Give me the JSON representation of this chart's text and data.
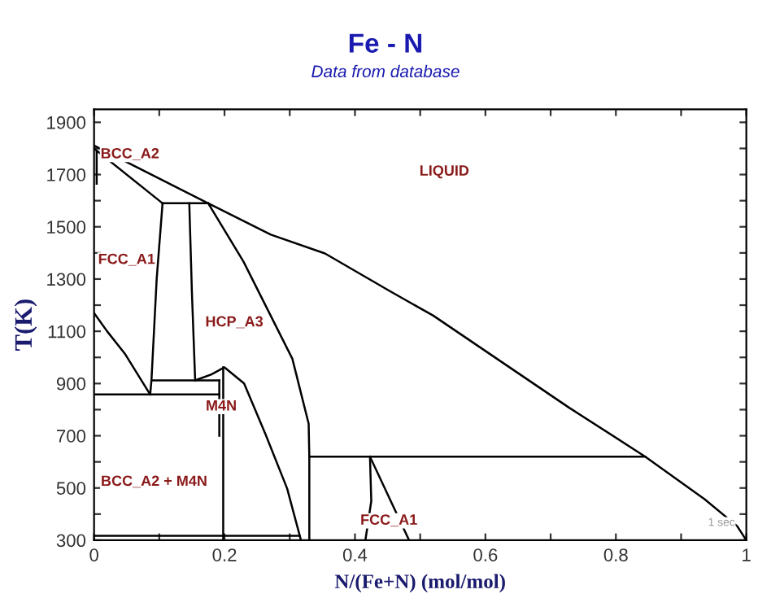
{
  "chart_data": {
    "type": "line",
    "title": "Fe - N",
    "subtitle": "Data from database",
    "xlabel": "N/(Fe+N) (mol/mol)",
    "ylabel": "T(K)",
    "xlim": [
      0,
      1
    ],
    "ylim": [
      300,
      1950
    ],
    "xticks": [
      0,
      {
        "value": 0.1,
        "label": null
      },
      0.2,
      {
        "value": 0.3,
        "label": null
      },
      0.4,
      {
        "value": 0.5,
        "label": null
      },
      0.6,
      {
        "value": 0.7,
        "label": null
      },
      0.8,
      {
        "value": 0.9,
        "label": null
      },
      1
    ],
    "yticks": [
      300,
      {
        "value": 400,
        "label": null
      },
      500,
      {
        "value": 600,
        "label": null
      },
      700,
      {
        "value": 800,
        "label": null
      },
      900,
      {
        "value": 1000,
        "label": null
      },
      1100,
      {
        "value": 1200,
        "label": null
      },
      1300,
      {
        "value": 1400,
        "label": null
      },
      1500,
      {
        "value": 1600,
        "label": null
      },
      1700,
      {
        "value": 1800,
        "label": null
      },
      1900
    ],
    "grid": false,
    "legend": false,
    "marker": "none",
    "line_style": "solid",
    "series": [
      {
        "color": "#000000",
        "x": [
          0,
          0.175,
          0.271,
          0.354,
          0.454,
          0.52,
          0.728,
          0.845,
          0.936,
          0.986,
          1.0
        ],
        "values": [
          1811,
          1590,
          1470,
          1398,
          1253,
          1160,
          808,
          620,
          457,
          354,
          300
        ]
      },
      {
        "color": "#000000",
        "x": [
          0,
          0.105
        ],
        "values": [
          1800,
          1590
        ]
      },
      {
        "color": "#000000",
        "x": [
          0.004,
          0.004
        ],
        "values": [
          1665,
          1790
        ]
      },
      {
        "color": "#000000",
        "x": [
          0.105,
          0.175
        ],
        "values": [
          1590,
          1590
        ]
      },
      {
        "color": "#000000",
        "x": [
          0.105,
          0.096,
          0.088,
          0.086
        ],
        "values": [
          1590,
          1300,
          912,
          858
        ]
      },
      {
        "color": "#000000",
        "x": [
          0.146,
          0.15,
          0.155
        ],
        "values": [
          1590,
          1250,
          912
        ]
      },
      {
        "color": "#000000",
        "x": [
          0.09,
          0.192
        ],
        "values": [
          912,
          912
        ]
      },
      {
        "color": "#000000",
        "x": [
          0,
          0.192
        ],
        "values": [
          858,
          858
        ]
      },
      {
        "color": "#000000",
        "x": [
          0,
          0.02,
          0.047,
          0.086
        ],
        "values": [
          1170,
          1100,
          1015,
          858
        ]
      },
      {
        "color": "#000000",
        "x": [
          0.175,
          0.229,
          0.304,
          0.329,
          0.33,
          0.33
        ],
        "values": [
          1590,
          1367,
          995,
          746,
          620,
          300
        ]
      },
      {
        "color": "#000000",
        "x": [
          0.155,
          0.18,
          0.2,
          0.23,
          0.263,
          0.296,
          0.317
        ],
        "values": [
          912,
          935,
          962,
          900,
          705,
          498,
          302
        ]
      },
      {
        "color": "#000000",
        "x": [
          0.198,
          0.198
        ],
        "values": [
          962,
          300
        ]
      },
      {
        "color": "#000000",
        "x": [
          0.192,
          0.192
        ],
        "values": [
          912,
          700
        ]
      },
      {
        "color": "#000000",
        "x": [
          0,
          0.315
        ],
        "values": [
          317,
          317
        ]
      },
      {
        "color": "#000000",
        "x": [
          0.33,
          0.845
        ],
        "values": [
          620,
          620
        ]
      },
      {
        "color": "#000000",
        "x": [
          0.423,
          0.425,
          0.416
        ],
        "values": [
          620,
          450,
          300
        ]
      },
      {
        "color": "#000000",
        "x": [
          0.423,
          0.483
        ],
        "values": [
          620,
          300
        ]
      }
    ],
    "annotations": [
      "BCC_A2",
      "FCC_A1",
      "HCP_A3",
      "M4N",
      "BCC_A2 + M4N",
      "LIQUID",
      "FCC_A1",
      "1 sec"
    ]
  }
}
